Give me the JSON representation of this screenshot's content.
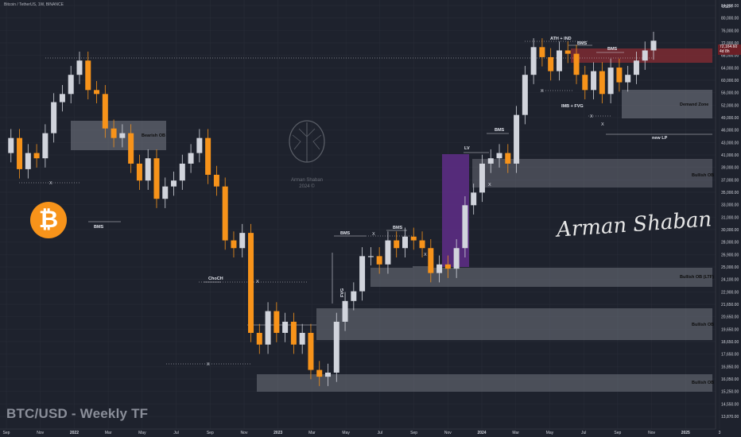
{
  "header": {
    "symbol_line": "Bitcoin / TetherUS, 1W, BINANCE"
  },
  "currency": "USDT",
  "footer_title": "BTC/USD - Weekly TF",
  "signature": "Arman Shaban",
  "watermark": {
    "line1": "Arman Shaban",
    "line2": "2024 ©"
  },
  "bitcoin_icon": "₿",
  "last_price": {
    "value": "72,164.60",
    "countdown": "4d 8h"
  },
  "colors": {
    "bullish": "#d1d4dc",
    "bearish": "#f7931a",
    "zone": "#787b86",
    "supply": "#7d2a33",
    "fvg": "#5b2c83"
  },
  "chart_data": {
    "type": "candlestick",
    "timeframe": "1W",
    "y_axis_ticks": [
      "84,000.00",
      "80,000.00",
      "76,000.00",
      "72,000.00",
      "68,000.00",
      "64,000.00",
      "60,000.00",
      "56,000.00",
      "52,000.00",
      "49,000.00",
      "46,000.00",
      "43,000.00",
      "41,000.00",
      "39,000.00",
      "37,000.00",
      "35,000.00",
      "33,000.00",
      "31,000.00",
      "30,000.00",
      "28,000.00",
      "26,900.00",
      "25,000.00",
      "24,100.00",
      "22,900.00",
      "21,650.00",
      "20,650.00",
      "19,650.00",
      "18,650.00",
      "17,650.00",
      "16,850.00",
      "16,050.00",
      "15,250.00",
      "14,550.00",
      "13,870.00"
    ],
    "x_axis_ticks": [
      "Sep",
      "Nov",
      "2022",
      "Mar",
      "May",
      "Jul",
      "Sep",
      "Nov",
      "2023",
      "Mar",
      "May",
      "Jul",
      "Sep",
      "Nov",
      "2024",
      "Mar",
      "May",
      "Jul",
      "Sep",
      "Nov",
      "2025",
      "3"
    ],
    "annotations": [
      "Bearish OB",
      "BMS",
      "ChoCH",
      "BMS",
      "BMS",
      "FVG",
      "LV",
      "BMS",
      "ATH + IND",
      "BMS",
      "BMS",
      "IMB + FVG",
      "Demand Zone",
      "new LP",
      "Bullish OB",
      "Bullish OB (LTF)",
      "Bullish OB",
      "Bullish OB"
    ],
    "series": [
      {
        "approx_price_path": [
          44000,
          47000,
          41000,
          44000,
          43000,
          48000,
          55000,
          57000,
          62000,
          66000,
          58000,
          57000,
          49000,
          47000,
          48000,
          42000,
          39000,
          43000,
          36000,
          38000,
          39000,
          42000,
          44000,
          47000,
          40000,
          38000,
          30000,
          29000,
          31000,
          20000,
          19000,
          22000,
          20000,
          21000,
          19000,
          20000,
          17000,
          16500,
          16800,
          21000,
          23000,
          24000,
          28000,
          28000,
          27000,
          30000,
          29000,
          30500,
          30000,
          29000,
          26000,
          27000,
          26500,
          29000,
          35000,
          37000,
          42000,
          43000,
          44000,
          42000,
          52000,
          62000,
          70000,
          67000,
          63000,
          69000,
          68000,
          62000,
          58000,
          63000,
          57000,
          64000,
          60000,
          62000,
          66000,
          69000,
          72000
        ]
      }
    ]
  }
}
